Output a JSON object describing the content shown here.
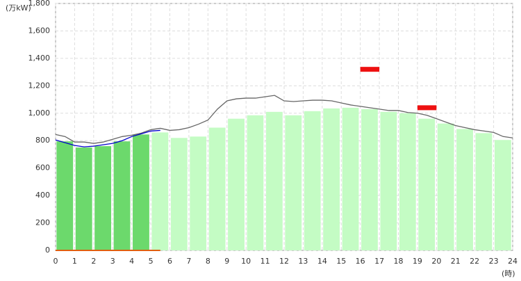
{
  "chart_data": {
    "type": "bar",
    "y_label": "(万kW)",
    "x_label": "(時)",
    "xlim": [
      0,
      24
    ],
    "xticks": [
      0,
      1,
      2,
      3,
      4,
      5,
      6,
      7,
      8,
      9,
      10,
      11,
      12,
      13,
      14,
      15,
      16,
      17,
      18,
      19,
      20,
      21,
      22,
      23,
      24
    ],
    "ylim": [
      0,
      1800
    ],
    "yticks": [
      0,
      200,
      400,
      600,
      800,
      {
        "value": 1000,
        "label": "1,000"
      },
      {
        "value": 1200,
        "label": "1,200"
      },
      {
        "value": 1400,
        "label": "1,400"
      },
      {
        "value": 1600,
        "label": "1,600"
      },
      {
        "value": 1800,
        "label": "1,800"
      }
    ],
    "grid": true,
    "x": [
      0,
      1,
      2,
      3,
      4,
      5,
      6,
      7,
      8,
      9,
      10,
      11,
      12,
      13,
      14,
      15,
      16,
      17,
      18,
      19,
      20,
      21,
      22,
      23
    ],
    "series": [
      {
        "color": "#6cd96c",
        "values": [
          795,
          750,
          760,
          795,
          845,
          null,
          null,
          null,
          null,
          null,
          null,
          null,
          null,
          null,
          null,
          null,
          null,
          null,
          null,
          null,
          null,
          null,
          null,
          null
        ]
      },
      {
        "color": "#c4fcc4",
        "values": [
          null,
          null,
          null,
          null,
          null,
          860,
          820,
          830,
          895,
          960,
          985,
          1010,
          985,
          1015,
          1035,
          1040,
          1030,
          1010,
          1000,
          960,
          925,
          885,
          855,
          805
        ]
      }
    ],
    "lines": [
      {
        "color": "#666666",
        "x": [
          0,
          0.5,
          1,
          1.5,
          2,
          2.5,
          3,
          3.5,
          4,
          4.5,
          5,
          5.5,
          6,
          6.5,
          7,
          7.5,
          8,
          8.5,
          9,
          9.5,
          10,
          10.5,
          11,
          11.5,
          12,
          12.5,
          13,
          13.5,
          14,
          14.5,
          15,
          15.5,
          16,
          16.5,
          17,
          17.5,
          18,
          18.5,
          19,
          19.5,
          20,
          20.5,
          21,
          21.5,
          22,
          22.5,
          23,
          23.5,
          24
        ],
        "values": [
          845,
          830,
          790,
          790,
          780,
          790,
          810,
          830,
          840,
          855,
          880,
          890,
          875,
          880,
          895,
          920,
          950,
          1030,
          1090,
          1105,
          1110,
          1110,
          1120,
          1130,
          1090,
          1085,
          1090,
          1095,
          1095,
          1090,
          1075,
          1060,
          1050,
          1040,
          1030,
          1020,
          1020,
          1005,
          1000,
          985,
          960,
          935,
          910,
          895,
          880,
          870,
          860,
          830,
          820
        ]
      },
      {
        "color": "#0000cc",
        "x": [
          0,
          0.5,
          1,
          1.5,
          2,
          2.5,
          3,
          3.5,
          4,
          4.5,
          5,
          5.5
        ],
        "values": [
          805,
          785,
          765,
          755,
          760,
          770,
          780,
          800,
          830,
          850,
          870,
          875
        ]
      },
      {
        "color": "#e06010",
        "x": [
          0,
          5.5
        ],
        "values": [
          0,
          0
        ]
      }
    ],
    "markers": {
      "color": "#ee1111",
      "x": [
        16,
        19
      ],
      "values": [
        1320,
        1040
      ]
    }
  }
}
